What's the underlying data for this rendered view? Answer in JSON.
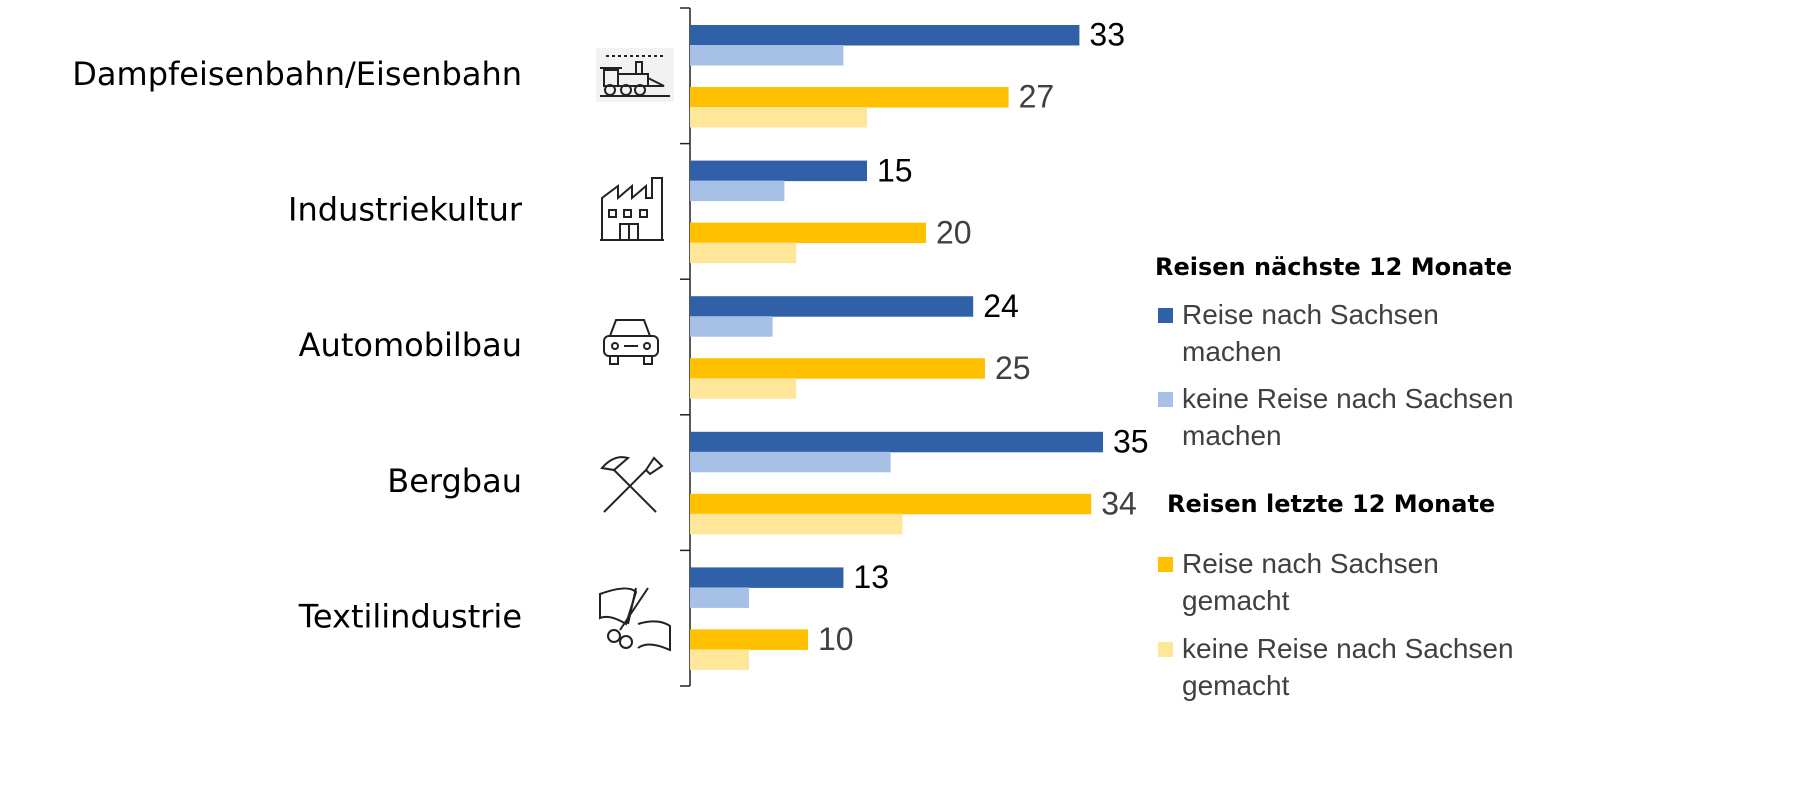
{
  "chart_data": {
    "type": "bar",
    "orientation": "horizontal",
    "categories": [
      "Dampfeisenbahn/Eisenbahn",
      "Industriekultur",
      "Automobilbau",
      "Bergbau",
      "Textilindustrie"
    ],
    "legend_titles": [
      "Reisen nächste 12 Monate",
      "Reisen letzte 12 Monate"
    ],
    "series": [
      {
        "name": "Reise nach Sachsen machen",
        "color": "#2f60a8",
        "group": 0,
        "labels": true,
        "values": [
          33,
          15,
          24,
          35,
          13
        ]
      },
      {
        "name": "keine Reise nach Sachsen machen",
        "color": "#a6c0e6",
        "group": 0,
        "labels": false,
        "values": [
          13,
          8,
          7,
          17,
          5
        ]
      },
      {
        "name": "Reise nach Sachsen gemacht",
        "color": "#ffc000",
        "group": 1,
        "labels": true,
        "values": [
          27,
          20,
          25,
          34,
          10
        ]
      },
      {
        "name": "keine Reise nach Sachsen gemacht",
        "color": "#ffe699",
        "group": 1,
        "labels": false,
        "values": [
          15,
          9,
          9,
          18,
          5
        ]
      }
    ],
    "xlim": [
      0,
      40
    ],
    "legend": "right"
  }
}
